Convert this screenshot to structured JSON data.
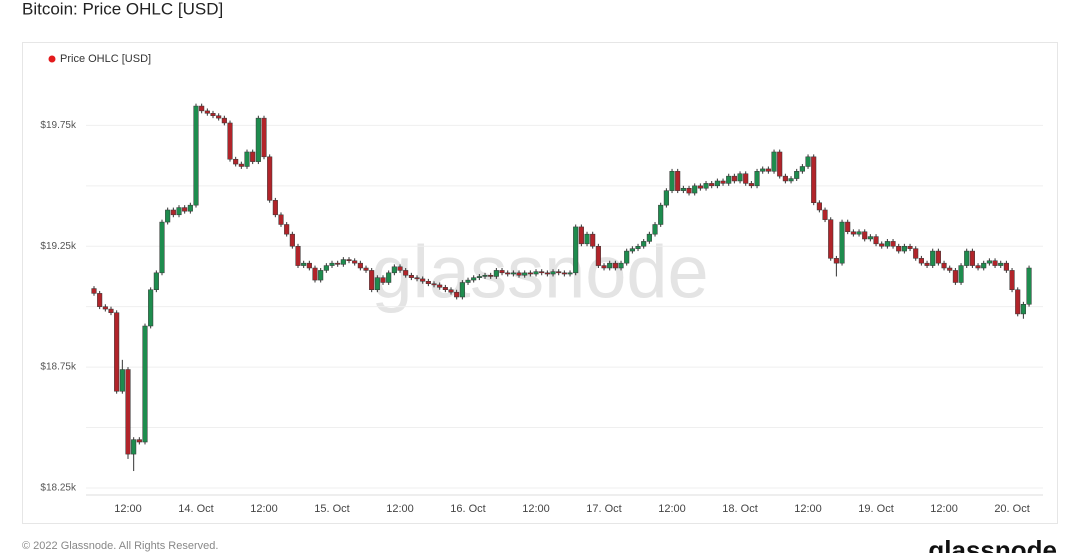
{
  "title": "Bitcoin: Price OHLC [USD]",
  "footer": {
    "copyright": "© 2022 Glassnode. All Rights Reserved.",
    "logo": "glassnode"
  },
  "chart_data": {
    "type": "candlestick",
    "legend": {
      "label": "Price OHLC [USD]",
      "color": "#e31a1c",
      "position": "top-left"
    },
    "watermark": "glassnode",
    "up_color": "#1e8c4e",
    "down_color": "#b1242a",
    "ylim": [
      18225,
      19975
    ],
    "yticks": [
      {
        "value": 18250,
        "label": "$18.25k"
      },
      {
        "value": 18500,
        "label": null
      },
      {
        "value": 18750,
        "label": "$18.75k"
      },
      {
        "value": 19000,
        "label": null
      },
      {
        "value": 19250,
        "label": "$19.25k"
      },
      {
        "value": 19500,
        "label": null
      },
      {
        "value": 19750,
        "label": "$19.75k"
      }
    ],
    "grid": true,
    "categories": [
      null,
      null,
      null,
      null,
      null,
      null,
      "12:00",
      null,
      null,
      null,
      null,
      null,
      null,
      null,
      null,
      null,
      null,
      null,
      "14. Oct",
      null,
      null,
      null,
      null,
      null,
      null,
      null,
      null,
      null,
      null,
      null,
      "12:00",
      null,
      null,
      null,
      null,
      null,
      null,
      null,
      null,
      null,
      null,
      null,
      "15. Oct",
      null,
      null,
      null,
      null,
      null,
      null,
      null,
      null,
      null,
      null,
      null,
      "12:00",
      null,
      null,
      null,
      null,
      null,
      null,
      null,
      null,
      null,
      null,
      null,
      "16. Oct",
      null,
      null,
      null,
      null,
      null,
      null,
      null,
      null,
      null,
      null,
      null,
      "12:00",
      null,
      null,
      null,
      null,
      null,
      null,
      null,
      null,
      null,
      null,
      null,
      "17. Oct",
      null,
      null,
      null,
      null,
      null,
      null,
      null,
      null,
      null,
      null,
      null,
      "12:00",
      null,
      null,
      null,
      null,
      null,
      null,
      null,
      null,
      null,
      null,
      null,
      "18. Oct",
      null,
      null,
      null,
      null,
      null,
      null,
      null,
      null,
      null,
      null,
      null,
      "12:00",
      null,
      null,
      null,
      null,
      null,
      null,
      null,
      null,
      null,
      null,
      null,
      "19. Oct",
      null,
      null,
      null,
      null,
      null,
      null,
      null,
      null,
      null,
      null,
      null,
      "12:00",
      null,
      null,
      null,
      null,
      null,
      null,
      null,
      null,
      null,
      null,
      null,
      "20. Oct",
      null,
      null,
      null
    ],
    "open": [
      19075,
      19055,
      19000,
      18990,
      18975,
      18650,
      18740,
      18390,
      18450,
      18440,
      18920,
      19070,
      19140,
      19350,
      19400,
      19380,
      19410,
      19395,
      19420,
      19830,
      19810,
      19800,
      19790,
      19780,
      19760,
      19610,
      19590,
      19580,
      19640,
      19600,
      19780,
      19620,
      19440,
      19380,
      19340,
      19300,
      19250,
      19170,
      19180,
      19160,
      19110,
      19150,
      19170,
      19180,
      19175,
      19195,
      19190,
      19180,
      19160,
      19150,
      19070,
      19120,
      19100,
      19140,
      19165,
      19150,
      19130,
      19120,
      19115,
      19105,
      19095,
      19090,
      19080,
      19070,
      19060,
      19040,
      19100,
      19110,
      19120,
      19125,
      19130,
      19125,
      19150,
      19140,
      19135,
      19140,
      19130,
      19140,
      19135,
      19145,
      19140,
      19135,
      19145,
      19140,
      19135,
      19140,
      19330,
      19260,
      19300,
      19250,
      19170,
      19160,
      19180,
      19160,
      19180,
      19230,
      19240,
      19250,
      19270,
      19300,
      19340,
      19420,
      19480,
      19560,
      19480,
      19490,
      19470,
      19500,
      19490,
      19510,
      19500,
      19520,
      19510,
      19540,
      19520,
      19550,
      19510,
      19500,
      19560,
      19570,
      19560,
      19640,
      19540,
      19520,
      19530,
      19560,
      19580,
      19620,
      19430,
      19400,
      19360,
      19200,
      19180,
      19350,
      19310,
      19300,
      19310,
      19280,
      19290,
      19260,
      19250,
      19270,
      19250,
      19230,
      19250,
      19240,
      19200,
      19180,
      19170,
      19230,
      19180,
      19160,
      19150,
      19100,
      19170,
      19230,
      19170,
      19160,
      19180,
      19190,
      19170,
      19180,
      19150,
      19070,
      18970,
      19010
    ],
    "high": [
      19085,
      19065,
      19010,
      19000,
      18985,
      18780,
      18750,
      18460,
      18460,
      18930,
      19080,
      19150,
      19360,
      19410,
      19410,
      19420,
      19420,
      19430,
      19840,
      19840,
      19820,
      19810,
      19800,
      19790,
      19770,
      19620,
      19600,
      19650,
      19650,
      19790,
      19790,
      19630,
      19450,
      19390,
      19350,
      19310,
      19260,
      19190,
      19190,
      19170,
      19160,
      19180,
      19190,
      19190,
      19205,
      19205,
      19200,
      19190,
      19170,
      19160,
      19130,
      19130,
      19150,
      19175,
      19175,
      19160,
      19140,
      19130,
      19125,
      19115,
      19105,
      19100,
      19090,
      19080,
      19070,
      19110,
      19120,
      19130,
      19135,
      19140,
      19140,
      19160,
      19160,
      19150,
      19150,
      19150,
      19150,
      19150,
      19155,
      19155,
      19150,
      19155,
      19155,
      19150,
      19150,
      19340,
      19340,
      19310,
      19310,
      19260,
      19180,
      19190,
      19190,
      19190,
      19240,
      19250,
      19260,
      19280,
      19310,
      19350,
      19430,
      19490,
      19570,
      19570,
      19500,
      19500,
      19510,
      19510,
      19520,
      19520,
      19530,
      19530,
      19550,
      19550,
      19560,
      19560,
      19520,
      19570,
      19580,
      19580,
      19650,
      19650,
      19550,
      19540,
      19570,
      19590,
      19630,
      19630,
      19440,
      19410,
      19370,
      19210,
      19360,
      19360,
      19320,
      19320,
      19320,
      19300,
      19300,
      19270,
      19280,
      19280,
      19260,
      19260,
      19260,
      19250,
      19210,
      19190,
      19240,
      19240,
      19190,
      19170,
      19160,
      19180,
      19240,
      19240,
      19180,
      19190,
      19200,
      19200,
      19190,
      19190,
      19160,
      19080,
      19020,
      19170
    ],
    "low": [
      19045,
      18990,
      18980,
      18965,
      18640,
      18640,
      18370,
      18320,
      18430,
      18430,
      18910,
      19060,
      19130,
      19340,
      19370,
      19370,
      19385,
      19385,
      19410,
      19800,
      19790,
      19780,
      19770,
      19750,
      19600,
      19580,
      19570,
      19570,
      19590,
      19590,
      19610,
      19430,
      19370,
      19330,
      19290,
      19240,
      19160,
      19160,
      19150,
      19100,
      19100,
      19140,
      19160,
      19165,
      19165,
      19180,
      19170,
      19150,
      19140,
      19060,
      19060,
      19090,
      19090,
      19130,
      19140,
      19120,
      19110,
      19105,
      19095,
      19085,
      19080,
      19070,
      19060,
      19050,
      19030,
      19030,
      19090,
      19100,
      19110,
      19115,
      19115,
      19115,
      19130,
      19125,
      19125,
      19120,
      19120,
      19125,
      19125,
      19130,
      19125,
      19125,
      19130,
      19125,
      19125,
      19130,
      19250,
      19250,
      19240,
      19160,
      19150,
      19150,
      19150,
      19150,
      19170,
      19220,
      19230,
      19240,
      19260,
      19290,
      19330,
      19410,
      19470,
      19470,
      19470,
      19460,
      19460,
      19480,
      19480,
      19490,
      19490,
      19500,
      19500,
      19510,
      19510,
      19500,
      19490,
      19490,
      19550,
      19550,
      19550,
      19530,
      19510,
      19510,
      19520,
      19550,
      19570,
      19420,
      19390,
      19350,
      19190,
      19125,
      19170,
      19300,
      19290,
      19290,
      19270,
      19270,
      19250,
      19240,
      19240,
      19240,
      19220,
      19220,
      19230,
      19190,
      19170,
      19160,
      19160,
      19170,
      19150,
      19140,
      19090,
      19090,
      19160,
      19160,
      19150,
      19150,
      19170,
      19160,
      19160,
      19140,
      19060,
      18960,
      18950,
      19000
    ],
    "close": [
      19055,
      19000,
      18990,
      18975,
      18650,
      18740,
      18390,
      18450,
      18440,
      18920,
      19070,
      19140,
      19350,
      19400,
      19380,
      19410,
      19395,
      19420,
      19830,
      19810,
      19800,
      19790,
      19780,
      19760,
      19610,
      19590,
      19580,
      19640,
      19600,
      19780,
      19620,
      19440,
      19380,
      19340,
      19300,
      19250,
      19170,
      19180,
      19160,
      19110,
      19150,
      19170,
      19180,
      19175,
      19195,
      19190,
      19180,
      19160,
      19150,
      19070,
      19120,
      19100,
      19140,
      19165,
      19150,
      19130,
      19120,
      19115,
      19105,
      19095,
      19090,
      19080,
      19070,
      19060,
      19040,
      19100,
      19110,
      19120,
      19125,
      19130,
      19125,
      19150,
      19140,
      19135,
      19140,
      19130,
      19140,
      19135,
      19145,
      19140,
      19135,
      19145,
      19140,
      19135,
      19140,
      19330,
      19260,
      19300,
      19250,
      19170,
      19160,
      19180,
      19160,
      19180,
      19230,
      19240,
      19250,
      19270,
      19300,
      19340,
      19420,
      19480,
      19560,
      19480,
      19490,
      19470,
      19500,
      19490,
      19510,
      19500,
      19520,
      19510,
      19540,
      19520,
      19550,
      19510,
      19500,
      19560,
      19570,
      19560,
      19640,
      19540,
      19520,
      19530,
      19560,
      19580,
      19620,
      19430,
      19400,
      19360,
      19200,
      19180,
      19350,
      19310,
      19300,
      19310,
      19280,
      19290,
      19260,
      19250,
      19270,
      19250,
      19230,
      19250,
      19240,
      19200,
      19180,
      19170,
      19230,
      19180,
      19160,
      19150,
      19100,
      19170,
      19230,
      19170,
      19160,
      19180,
      19190,
      19170,
      19180,
      19150,
      19070,
      18970,
      19010,
      19160
    ]
  }
}
